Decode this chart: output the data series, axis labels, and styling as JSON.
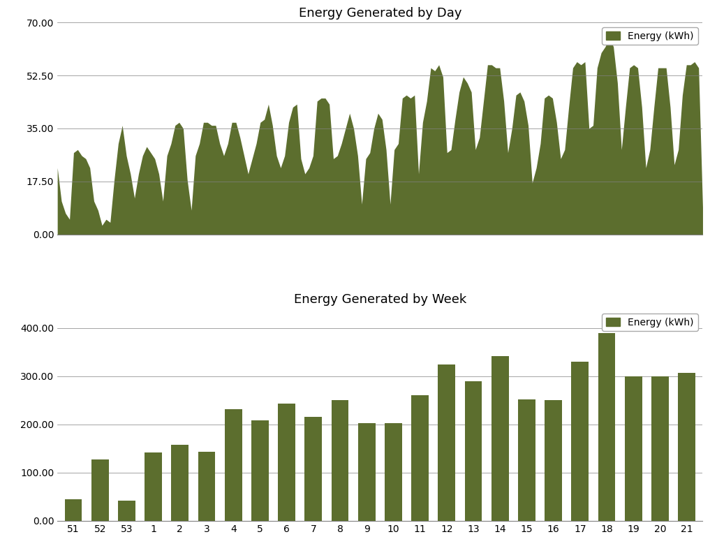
{
  "title_day": "Energy Generated by Day",
  "title_week": "Energy Generated by Week",
  "legend_label": "Energy (kWh)",
  "bar_color": "#5C6E2E",
  "fill_color": "#5C6E2E",
  "day_ylim": [
    0,
    70
  ],
  "day_yticks": [
    0.0,
    17.5,
    35.0,
    52.5,
    70.0
  ],
  "day_ytick_labels": [
    "0.00",
    "17.50",
    "35.00",
    "52.50",
    "70.00"
  ],
  "week_ylim": [
    0,
    440
  ],
  "week_yticks": [
    0.0,
    100.0,
    200.0,
    300.0,
    400.0
  ],
  "week_ytick_labels": [
    "0.00",
    "100.00",
    "200.00",
    "300.00",
    "400.00"
  ],
  "week_categories": [
    "51",
    "52",
    "53",
    "1",
    "2",
    "3",
    "4",
    "5",
    "6",
    "7",
    "8",
    "9",
    "10",
    "11",
    "12",
    "13",
    "14",
    "15",
    "16",
    "17",
    "18",
    "19",
    "20",
    "21"
  ],
  "week_values": [
    45,
    128,
    42,
    142,
    157,
    143,
    232,
    208,
    243,
    215,
    250,
    202,
    203,
    260,
    325,
    290,
    342,
    252,
    250,
    330,
    390,
    300,
    300,
    307
  ],
  "daily_values": [
    22,
    11,
    7,
    5,
    27,
    28,
    26,
    25,
    22,
    11,
    8,
    3,
    5,
    4,
    18,
    30,
    36,
    26,
    20,
    12,
    20,
    26,
    29,
    27,
    25,
    20,
    11,
    26,
    30,
    36,
    37,
    35,
    18,
    8,
    26,
    30,
    37,
    37,
    36,
    36,
    30,
    26,
    30,
    37,
    37,
    32,
    26,
    20,
    25,
    30,
    37,
    38,
    43,
    36,
    26,
    22,
    26,
    37,
    42,
    43,
    25,
    20,
    22,
    26,
    44,
    45,
    45,
    43,
    25,
    26,
    30,
    35,
    40,
    35,
    26,
    10,
    25,
    27,
    35,
    40,
    38,
    28,
    10,
    28,
    30,
    45,
    46,
    45,
    46,
    20,
    37,
    44,
    55,
    54,
    56,
    52,
    27,
    28,
    38,
    47,
    52,
    50,
    47,
    28,
    32,
    44,
    56,
    56,
    55,
    55,
    44,
    27,
    35,
    46,
    47,
    44,
    36,
    17,
    22,
    30,
    45,
    46,
    45,
    37,
    25,
    28,
    42,
    55,
    57,
    56,
    57,
    35,
    36,
    55,
    60,
    62,
    65,
    62,
    50,
    28,
    42,
    55,
    56,
    55,
    42,
    22,
    28,
    42,
    55,
    55,
    55,
    42,
    23,
    28,
    46,
    56,
    56,
    57,
    55,
    9
  ]
}
